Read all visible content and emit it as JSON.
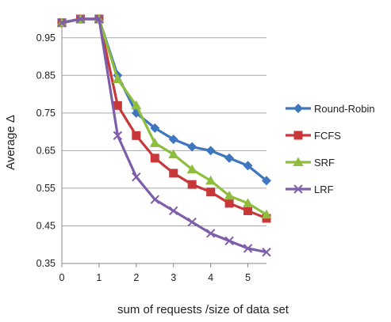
{
  "chart_data": {
    "type": "line",
    "title": "",
    "xlabel": "sum of requests /size of data set",
    "ylabel": "Average Δ",
    "xlim": [
      0,
      5.5
    ],
    "ylim": [
      0.35,
      1.0
    ],
    "x_ticks": [
      "0",
      "1",
      "2",
      "3",
      "4",
      "5"
    ],
    "y_ticks": [
      "0.95",
      "0.85",
      "0.75",
      "0.65",
      "0.55",
      "0.45",
      "0.35"
    ],
    "grid": "horizontal",
    "legend_position": "right",
    "x": [
      0,
      0.5,
      1,
      1.5,
      2,
      2.5,
      3,
      3.5,
      4,
      4.5,
      5,
      5.5
    ],
    "series": [
      {
        "name": "Round-Robin",
        "color": "#3f76c0",
        "marker": "diamond",
        "values": [
          0.99,
          1.0,
          1.0,
          0.85,
          0.75,
          0.71,
          0.68,
          0.66,
          0.65,
          0.63,
          0.61,
          0.57
        ]
      },
      {
        "name": "FCFS",
        "color": "#c8383a",
        "marker": "square",
        "values": [
          0.99,
          1.0,
          1.0,
          0.77,
          0.69,
          0.63,
          0.59,
          0.56,
          0.54,
          0.51,
          0.49,
          0.47
        ]
      },
      {
        "name": "SRF",
        "color": "#8fbd3e",
        "marker": "triangle",
        "values": [
          0.99,
          1.0,
          1.0,
          0.84,
          0.77,
          0.67,
          0.64,
          0.6,
          0.57,
          0.53,
          0.51,
          0.48
        ]
      },
      {
        "name": "LRF",
        "color": "#7e5ea8",
        "marker": "x",
        "values": [
          0.99,
          1.0,
          1.0,
          0.69,
          0.58,
          0.52,
          0.49,
          0.46,
          0.43,
          0.41,
          0.39,
          0.38
        ]
      }
    ]
  }
}
